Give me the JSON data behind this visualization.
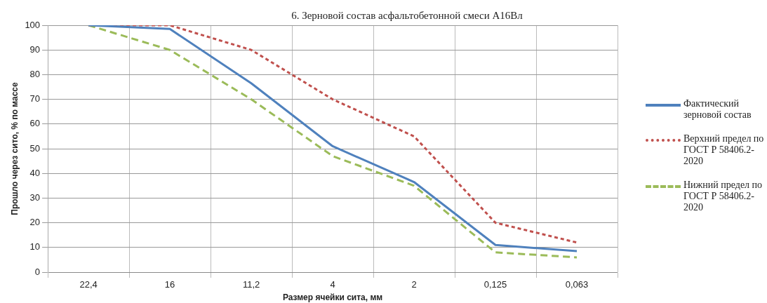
{
  "chart_data": {
    "type": "line",
    "title": "6. Зерновой состав асфальтобетонной смеси А16Вл",
    "xlabel": "Размер ячейки сита, мм",
    "ylabel": "Прошло через сито, % по массе",
    "categories": [
      "22,4",
      "16",
      "11,2",
      "4",
      "2",
      "0,125",
      "0,063"
    ],
    "series": [
      {
        "name": "Фактический зерновой состав",
        "color": "#4f81bd",
        "line_style": "solid",
        "values": [
          100,
          98.5,
          76.5,
          51,
          36.5,
          11,
          8.5
        ]
      },
      {
        "name": "Верхний предел по ГОСТ Р 58406.2-2020",
        "color": "#c0504d",
        "line_style": "dotted",
        "values": [
          100,
          100,
          90,
          70,
          55,
          20,
          12
        ]
      },
      {
        "name": "Нижний предел по ГОСТ Р 58406.2-2020",
        "color": "#9bbb59",
        "line_style": "dashed",
        "values": [
          100,
          90,
          70,
          47,
          35,
          8,
          6
        ]
      }
    ],
    "ylim": [
      0,
      100
    ],
    "yticks": [
      0,
      10,
      20,
      30,
      40,
      50,
      60,
      70,
      80,
      90,
      100
    ],
    "grid": true,
    "legend": "right",
    "marker": "none"
  }
}
